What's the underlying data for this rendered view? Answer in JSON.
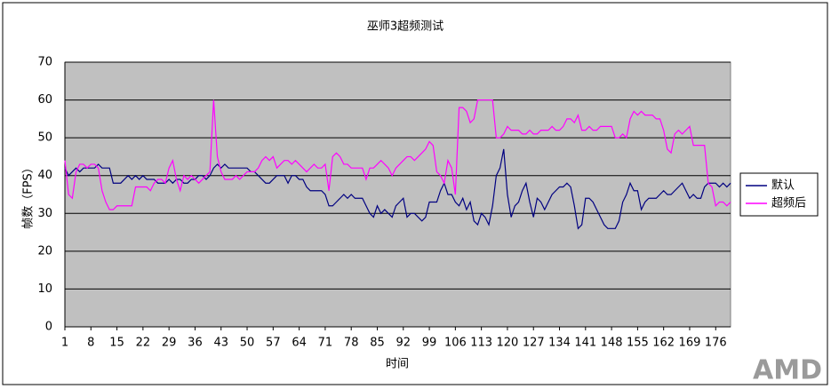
{
  "chart_data": {
    "type": "line",
    "title": "巫师3超频测试",
    "x_label": "时间",
    "y_label": "帧数（FPS）",
    "watermark": "AMD",
    "x": [
      1,
      2,
      3,
      4,
      5,
      6,
      7,
      8,
      9,
      10,
      11,
      12,
      13,
      14,
      15,
      16,
      17,
      18,
      19,
      20,
      21,
      22,
      23,
      24,
      25,
      26,
      27,
      28,
      29,
      30,
      31,
      32,
      33,
      34,
      35,
      36,
      37,
      38,
      39,
      40,
      41,
      42,
      43,
      44,
      45,
      46,
      47,
      48,
      49,
      50,
      51,
      52,
      53,
      54,
      55,
      56,
      57,
      58,
      59,
      60,
      61,
      62,
      63,
      64,
      65,
      66,
      67,
      68,
      69,
      70,
      71,
      72,
      73,
      74,
      75,
      76,
      77,
      78,
      79,
      80,
      81,
      82,
      83,
      84,
      85,
      86,
      87,
      88,
      89,
      90,
      91,
      92,
      93,
      94,
      95,
      96,
      97,
      98,
      99,
      100,
      101,
      102,
      103,
      104,
      105,
      106,
      107,
      108,
      109,
      110,
      111,
      112,
      113,
      114,
      115,
      116,
      117,
      118,
      119,
      120,
      121,
      122,
      123,
      124,
      125,
      126,
      127,
      128,
      129,
      130,
      131,
      132,
      133,
      134,
      135,
      136,
      137,
      138,
      139,
      140,
      141,
      142,
      143,
      144,
      145,
      146,
      147,
      148,
      149,
      150,
      151,
      152,
      153,
      154,
      155,
      156,
      157,
      158,
      159,
      160,
      161,
      162,
      163,
      164,
      165,
      166,
      167,
      168,
      169,
      170,
      171,
      172,
      173,
      174,
      175,
      176,
      177,
      178,
      179,
      180
    ],
    "xlim": [
      1,
      180
    ],
    "xticks": [
      1,
      8,
      15,
      22,
      29,
      36,
      43,
      50,
      57,
      64,
      71,
      78,
      85,
      92,
      99,
      106,
      113,
      120,
      127,
      134,
      141,
      148,
      155,
      162,
      169,
      176
    ],
    "ylim": [
      0,
      70
    ],
    "yticks": [
      0,
      10,
      20,
      30,
      40,
      50,
      60,
      70
    ],
    "grid": true,
    "legend": "right",
    "plot_background": "#c0c0c0",
    "series": [
      {
        "name": "默认",
        "color": "#000080",
        "values": [
          42,
          40,
          41,
          42,
          41,
          42,
          42,
          42,
          42,
          43,
          42,
          42,
          42,
          38,
          38,
          38,
          39,
          40,
          39,
          40,
          39,
          40,
          39,
          39,
          39,
          38,
          38,
          38,
          39,
          38,
          39,
          39,
          38,
          38,
          39,
          39,
          40,
          40,
          39,
          40,
          42,
          43,
          42,
          43,
          42,
          42,
          42,
          42,
          42,
          42,
          41,
          41,
          40,
          39,
          38,
          38,
          39,
          40,
          40,
          40,
          38,
          40,
          40,
          39,
          39,
          37,
          36,
          36,
          36,
          36,
          35,
          32,
          32,
          33,
          34,
          35,
          34,
          35,
          34,
          34,
          34,
          32,
          30,
          29,
          32,
          30,
          31,
          30,
          29,
          32,
          33,
          34,
          29,
          30,
          30,
          29,
          28,
          29,
          33,
          33,
          33,
          36,
          38,
          35,
          35,
          33,
          32,
          34,
          31,
          33,
          28,
          27,
          30,
          29,
          27,
          32,
          40,
          42,
          47,
          35,
          29,
          32,
          33,
          36,
          38,
          33,
          29,
          34,
          33,
          31,
          33,
          35,
          36,
          37,
          37,
          38,
          37,
          32,
          26,
          27,
          34,
          34,
          33,
          31,
          29,
          27,
          26,
          26,
          26,
          28,
          33,
          35,
          38,
          36,
          36,
          31,
          33,
          34,
          34,
          34,
          35,
          36,
          35,
          35,
          36,
          37,
          38,
          36,
          34,
          35,
          34,
          34,
          37,
          38,
          38,
          38,
          37,
          38,
          37,
          38
        ]
      },
      {
        "name": "超频后",
        "color": "#ff00ff",
        "values": [
          44,
          35,
          34,
          41,
          43,
          43,
          42,
          43,
          43,
          42,
          36,
          33,
          31,
          31,
          32,
          32,
          32,
          32,
          32,
          37,
          37,
          37,
          37,
          36,
          38,
          39,
          39,
          38,
          42,
          44,
          39,
          36,
          40,
          39,
          40,
          39,
          38,
          39,
          40,
          41,
          60,
          45,
          41,
          39,
          39,
          39,
          40,
          39,
          40,
          41,
          41,
          41,
          42,
          44,
          45,
          44,
          45,
          42,
          43,
          44,
          44,
          43,
          44,
          43,
          42,
          41,
          42,
          43,
          42,
          42,
          43,
          36,
          45,
          46,
          45,
          43,
          43,
          42,
          42,
          42,
          42,
          39,
          42,
          42,
          43,
          44,
          43,
          42,
          40,
          42,
          43,
          44,
          45,
          45,
          44,
          45,
          46,
          47,
          49,
          48,
          41,
          40,
          38,
          44,
          42,
          35,
          58,
          58,
          57,
          54,
          55,
          60,
          60,
          60,
          60,
          60,
          50,
          50,
          51,
          53,
          52,
          52,
          52,
          51,
          51,
          52,
          51,
          51,
          52,
          52,
          52,
          53,
          52,
          52,
          53,
          55,
          55,
          54,
          56,
          52,
          52,
          53,
          52,
          52,
          53,
          53,
          53,
          53,
          50,
          50,
          51,
          50,
          55,
          57,
          56,
          57,
          56,
          56,
          56,
          55,
          55,
          52,
          47,
          46,
          51,
          52,
          51,
          52,
          53,
          48,
          48,
          48,
          48,
          38,
          37,
          32,
          33,
          33,
          32,
          33
        ]
      }
    ]
  }
}
